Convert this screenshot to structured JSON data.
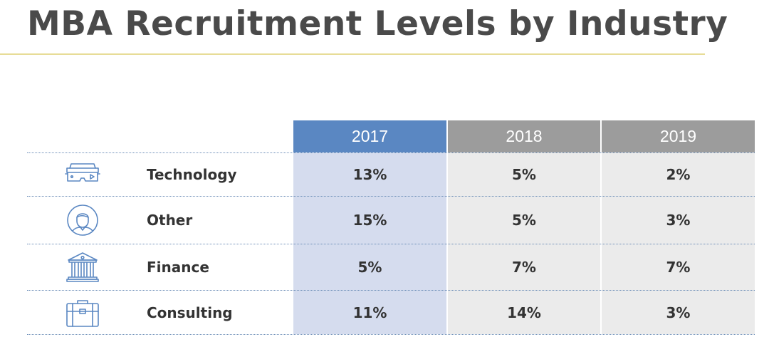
{
  "title": "MBA Recruitment Levels by Industry",
  "colors": {
    "accent_rule": "#e7dc97",
    "header_highlight": "#5a87c2",
    "header_default": "#9c9c9c",
    "column_highlight": "#d5dcee",
    "column_default": "#ebebeb",
    "icon_stroke": "#5a87c2"
  },
  "chart_data": {
    "type": "table",
    "title": "MBA Recruitment Levels by Industry",
    "columns": [
      "2017",
      "2018",
      "2019"
    ],
    "highlighted_column": "2017",
    "rows": [
      {
        "label": "Technology",
        "icon": "vr-headset-icon",
        "values": [
          "13%",
          "5%",
          "2%"
        ]
      },
      {
        "label": "Other",
        "icon": "person-icon",
        "values": [
          "15%",
          "5%",
          "3%"
        ]
      },
      {
        "label": "Finance",
        "icon": "bank-icon",
        "values": [
          "5%",
          "7%",
          "7%"
        ]
      },
      {
        "label": "Consulting",
        "icon": "briefcase-icon",
        "values": [
          "11%",
          "14%",
          "3%"
        ]
      }
    ]
  }
}
